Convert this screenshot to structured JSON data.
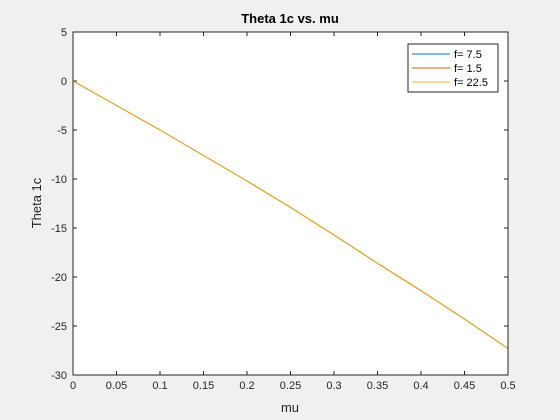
{
  "chart_data": {
    "type": "line",
    "title": "Theta 1c vs. mu",
    "xlabel": "mu",
    "ylabel": "Theta 1c",
    "xlim": [
      0,
      0.5
    ],
    "ylim": [
      -30,
      5
    ],
    "xticks": [
      "0",
      "0.05",
      "0.1",
      "0.15",
      "0.2",
      "0.25",
      "0.3",
      "0.35",
      "0.4",
      "0.45",
      "0.5"
    ],
    "yticks": [
      "5",
      "0",
      "-5",
      "-10",
      "-15",
      "-20",
      "-25",
      "-30"
    ],
    "grid": false,
    "legend_position": "top-right",
    "series": [
      {
        "name": "f= 7.5",
        "color": "#0072BD",
        "x": [
          0,
          0.05,
          0.1,
          0.15,
          0.2,
          0.25,
          0.3,
          0.35,
          0.4,
          0.45,
          0.5
        ],
        "y": [
          0,
          -2.5,
          -5.0,
          -7.6,
          -10.2,
          -12.9,
          -15.7,
          -18.6,
          -21.4,
          -24.3,
          -27.3
        ]
      },
      {
        "name": "f= 1.5",
        "color": "#D95319",
        "x": [
          0,
          0.05,
          0.1,
          0.15,
          0.2,
          0.25,
          0.3,
          0.35,
          0.4,
          0.45,
          0.5
        ],
        "y": [
          0,
          -2.5,
          -5.0,
          -7.6,
          -10.2,
          -12.9,
          -15.7,
          -18.6,
          -21.4,
          -24.3,
          -27.3
        ]
      },
      {
        "name": "f= 22.5",
        "color": "#EDB120",
        "x": [
          0,
          0.05,
          0.1,
          0.15,
          0.2,
          0.25,
          0.3,
          0.35,
          0.4,
          0.45,
          0.5
        ],
        "y": [
          0,
          -2.5,
          -5.0,
          -7.6,
          -10.2,
          -12.9,
          -15.7,
          -18.6,
          -21.4,
          -24.3,
          -27.3
        ]
      }
    ]
  }
}
